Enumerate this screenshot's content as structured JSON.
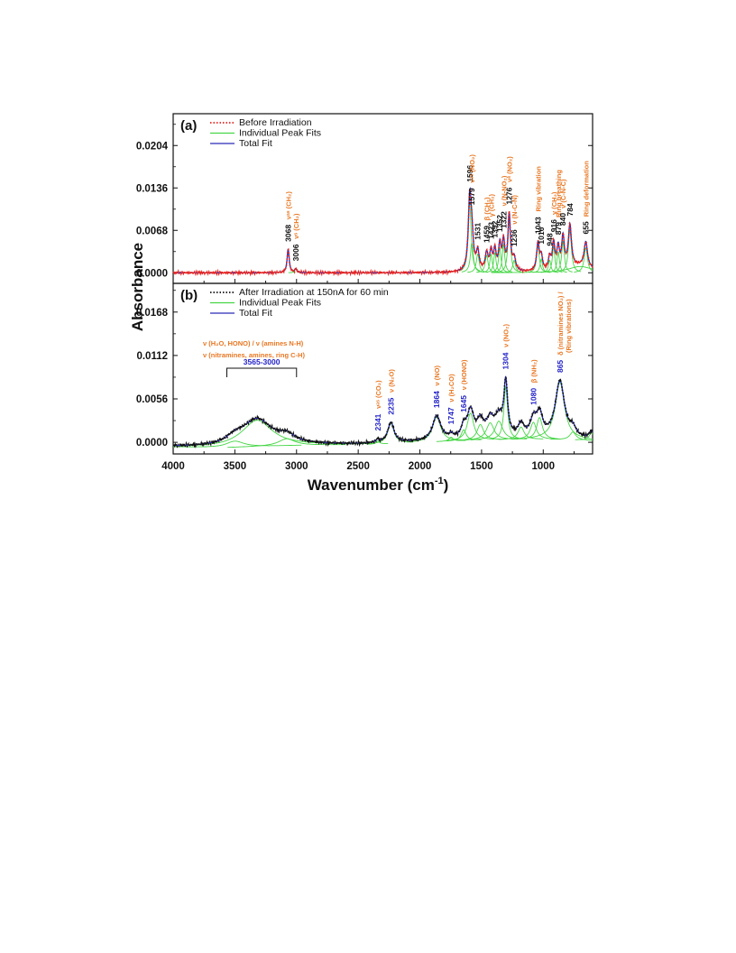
{
  "chart_data": [
    {
      "type": "line",
      "panel_label": "(a)",
      "xlim": [
        4000,
        600
      ],
      "ylim": [
        -0.0017,
        0.0255
      ],
      "yticks": [
        0.0,
        0.0068,
        0.0136,
        0.0204
      ],
      "ytick_labels": [
        "0.0000",
        "0.0068",
        "0.0136",
        "0.0204"
      ],
      "legend": {
        "placement": "top-left",
        "entries": [
          {
            "label": "Before Irradiation",
            "color": "#e8231e",
            "style": "dotted"
          },
          {
            "label": "Individual Peak Fits",
            "color": "#46d646",
            "style": "solid"
          },
          {
            "label": "Total Fit",
            "color": "#2b2bb8",
            "style": "solid"
          }
        ]
      },
      "baseline": 0.0,
      "fit_peaks": [
        {
          "x": 3068,
          "height": 0.0038,
          "width": 10
        },
        {
          "x": 3006,
          "height": 0.0006,
          "width": 10
        },
        {
          "x": 1596,
          "height": 0.0112,
          "width": 14
        },
        {
          "x": 1579,
          "height": 0.0048,
          "width": 14
        },
        {
          "x": 1531,
          "height": 0.003,
          "width": 14
        },
        {
          "x": 1459,
          "height": 0.0028,
          "width": 14
        },
        {
          "x": 1423,
          "height": 0.003,
          "width": 12
        },
        {
          "x": 1392,
          "height": 0.0032,
          "width": 12
        },
        {
          "x": 1352,
          "height": 0.004,
          "width": 12
        },
        {
          "x": 1322,
          "height": 0.0045,
          "width": 12
        },
        {
          "x": 1276,
          "height": 0.009,
          "width": 12
        },
        {
          "x": 1236,
          "height": 0.002,
          "width": 14
        },
        {
          "x": 1043,
          "height": 0.0044,
          "width": 13
        },
        {
          "x": 1016,
          "height": 0.0022,
          "width": 12
        },
        {
          "x": 948,
          "height": 0.002,
          "width": 12
        },
        {
          "x": 916,
          "height": 0.0042,
          "width": 12
        },
        {
          "x": 879,
          "height": 0.0034,
          "width": 12
        },
        {
          "x": 840,
          "height": 0.005,
          "width": 13
        },
        {
          "x": 784,
          "height": 0.0068,
          "width": 15
        },
        {
          "x": 700,
          "height": 0.001,
          "width": 120
        },
        {
          "x": 655,
          "height": 0.004,
          "width": 16
        }
      ],
      "peak_labels": [
        {
          "wavenumber": "3068",
          "assignment": "νᵃˢ (CH₂)"
        },
        {
          "wavenumber": "3006",
          "assignment": "νˢ (CH₂)"
        },
        {
          "wavenumber": "1596",
          "assignment": ""
        },
        {
          "wavenumber": "1579",
          "assignment": "νᵃˢ (NO₂)"
        },
        {
          "wavenumber": "1531",
          "assignment": ""
        },
        {
          "wavenumber": "1459",
          "assignment": "β (CH₂)"
        },
        {
          "wavenumber": "1423",
          "assignment": "γ (CH₂)"
        },
        {
          "wavenumber": "1392",
          "assignment": ""
        },
        {
          "wavenumber": "1352",
          "assignment": ""
        },
        {
          "wavenumber": "1322",
          "assignment": "ν (N-NO₂)"
        },
        {
          "wavenumber": "1276",
          "assignment": "νˢ (NO₂)"
        },
        {
          "wavenumber": "1236",
          "assignment": "ν (N-C-N)"
        },
        {
          "wavenumber": "1043",
          "assignment": "Ring vibration"
        },
        {
          "wavenumber": "1016",
          "assignment": ""
        },
        {
          "wavenumber": "948",
          "assignment": ""
        },
        {
          "wavenumber": "916",
          "assignment": "γ (CH₂)"
        },
        {
          "wavenumber": "879",
          "assignment": "Ring breathing"
        },
        {
          "wavenumber": "840",
          "assignment": "ν (C-N-C)"
        },
        {
          "wavenumber": "784",
          "assignment": ""
        },
        {
          "wavenumber": "655",
          "assignment": "Ring deformation"
        }
      ]
    },
    {
      "type": "line",
      "panel_label": "(b)",
      "xlim": [
        4000,
        600
      ],
      "ylim": [
        -0.0015,
        0.0205
      ],
      "yticks": [
        0.0,
        0.0056,
        0.0112,
        0.0168
      ],
      "ytick_labels": [
        "0.0000",
        "0.0056",
        "0.0112",
        "0.0168"
      ],
      "legend": {
        "placement": "top-left",
        "entries": [
          {
            "label": "After Irradiation at 150nA for 60 min",
            "color": "#111111",
            "style": "dotted"
          },
          {
            "label": "Individual Peak Fits",
            "color": "#46d646",
            "style": "solid"
          },
          {
            "label": "Total Fit",
            "color": "#2b2bb8",
            "style": "solid"
          }
        ]
      },
      "baseline_curve": [
        [
          4000,
          -0.0006
        ],
        [
          3600,
          -0.0007
        ],
        [
          3000,
          -0.0004
        ],
        [
          2500,
          -0.0003
        ],
        [
          2000,
          0.0
        ],
        [
          1500,
          0.0003
        ],
        [
          1000,
          0.0004
        ],
        [
          700,
          0.0003
        ],
        [
          600,
          0.0002
        ]
      ],
      "fit_peaks": [
        {
          "x": 3320,
          "height": 0.0034,
          "width": 150
        },
        {
          "x": 3500,
          "height": 0.0008,
          "width": 90
        },
        {
          "x": 3080,
          "height": 0.0009,
          "width": 80
        },
        {
          "x": 2341,
          "height": 0.0004,
          "width": 14
        },
        {
          "x": 2235,
          "height": 0.0026,
          "width": 30
        },
        {
          "x": 1864,
          "height": 0.0032,
          "width": 40
        },
        {
          "x": 1747,
          "height": 0.0005,
          "width": 20
        },
        {
          "x": 1645,
          "height": 0.0014,
          "width": 24
        },
        {
          "x": 1590,
          "height": 0.0035,
          "width": 32
        },
        {
          "x": 1510,
          "height": 0.002,
          "width": 32
        },
        {
          "x": 1430,
          "height": 0.0022,
          "width": 38
        },
        {
          "x": 1360,
          "height": 0.0024,
          "width": 38
        },
        {
          "x": 1304,
          "height": 0.0068,
          "width": 18
        },
        {
          "x": 1180,
          "height": 0.0016,
          "width": 30
        },
        {
          "x": 1080,
          "height": 0.0022,
          "width": 30
        },
        {
          "x": 1030,
          "height": 0.0028,
          "width": 28
        },
        {
          "x": 865,
          "height": 0.0074,
          "width": 45
        },
        {
          "x": 760,
          "height": 0.001,
          "width": 30
        },
        {
          "x": 610,
          "height": 0.001,
          "width": 22
        }
      ],
      "peak_labels": [
        {
          "wavenumber": "3565-3000",
          "assignment": ""
        },
        {
          "wavenumber": "2341",
          "assignment": "νᵃˢ (CO₂)"
        },
        {
          "wavenumber": "2235",
          "assignment": "ν (N₂O)"
        },
        {
          "wavenumber": "1864",
          "assignment": "ν (NO)"
        },
        {
          "wavenumber": "1747",
          "assignment": "ν (H₂CO)"
        },
        {
          "wavenumber": "1645",
          "assignment": "ν (HONO)"
        },
        {
          "wavenumber": "1304",
          "assignment": "ν (NO₂)"
        },
        {
          "wavenumber": "1080",
          "assignment": "β (NH₂)"
        },
        {
          "wavenumber": "865",
          "assignment": "δ (nitramines NO₂) /"
        }
      ],
      "annotations": [
        "ν (H₂O, HONO) / ν (amines N-H)",
        "ν (nitramines, amines, ring C-H)",
        "(Ring vibrations)"
      ]
    }
  ],
  "ylabel": "Absorbance",
  "xlabel": "Wavenumber (cm",
  "xlabel_sup": "-1",
  "xlabel_end": ")",
  "xticks": [
    4000,
    3500,
    3000,
    2500,
    2000,
    1500,
    1000
  ],
  "colors": {
    "data_before": "#e8231e",
    "data_after": "#111111",
    "peak_fits": "#46d646",
    "total_fit": "#2b2bb8",
    "label_black": "#111111",
    "label_blue": "#2323c8",
    "label_orange": "#e87722"
  }
}
